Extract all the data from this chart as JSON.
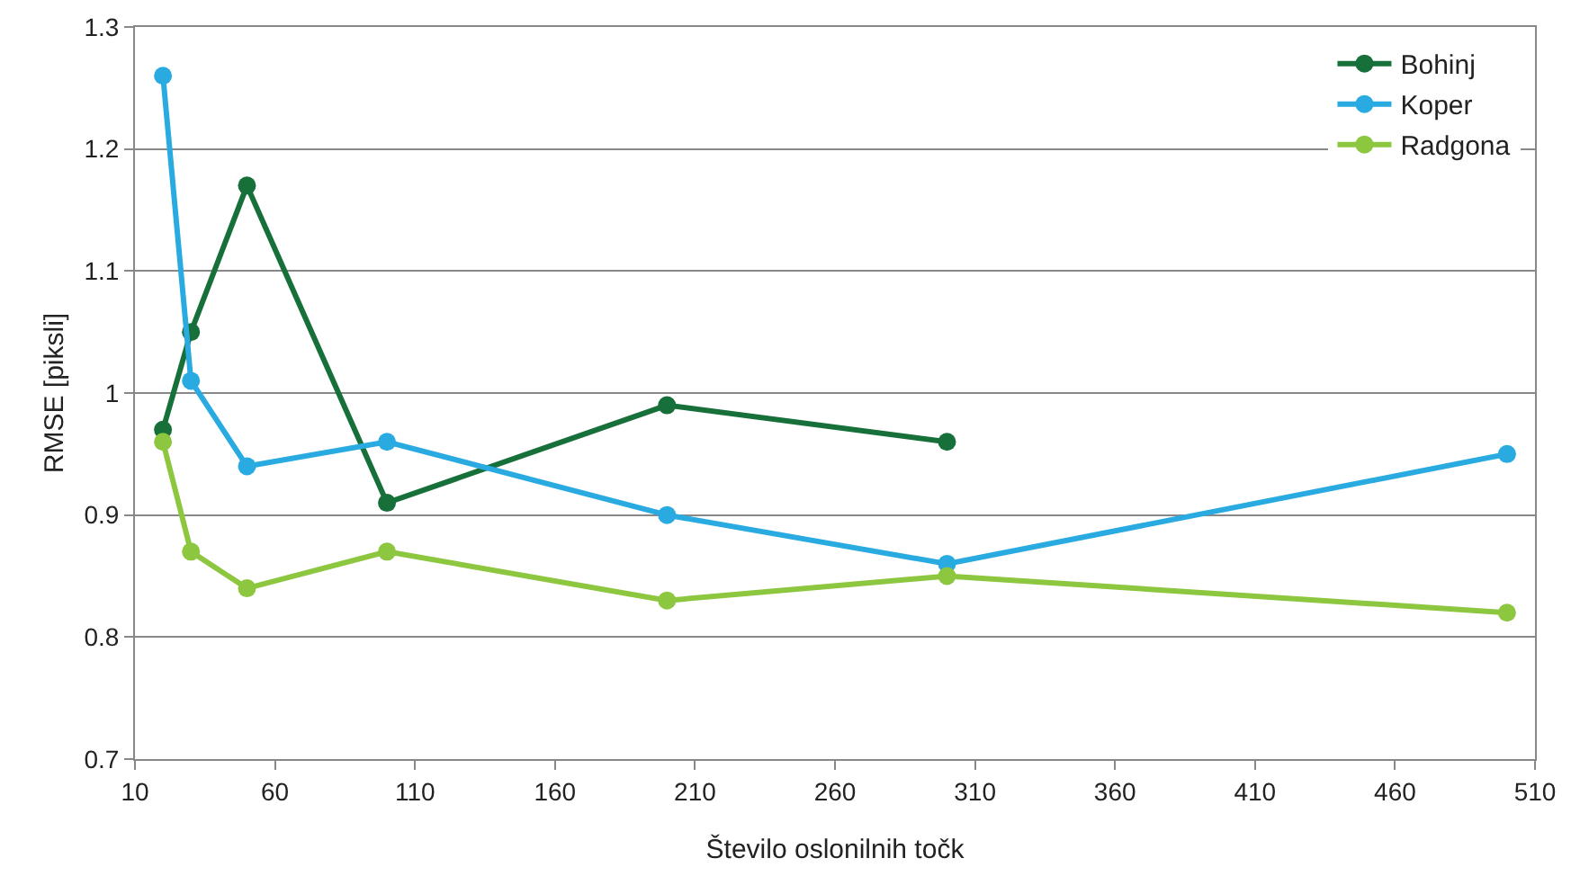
{
  "chart_data": {
    "type": "line",
    "xlabel": "Število oslonilnih točk",
    "ylabel": "RMSE [piksli]",
    "series": [
      {
        "name": "Bohinj",
        "color": "#17703a",
        "x": [
          20,
          30,
          50,
          100,
          200,
          300
        ],
        "values": [
          0.97,
          1.05,
          1.17,
          0.91,
          0.99,
          0.96
        ]
      },
      {
        "name": "Koper",
        "color": "#29abe2",
        "x": [
          20,
          30,
          50,
          100,
          200,
          300,
          500
        ],
        "values": [
          1.26,
          1.01,
          0.94,
          0.96,
          0.9,
          0.86,
          0.95
        ]
      },
      {
        "name": "Radgona",
        "color": "#8dc63f",
        "x": [
          20,
          30,
          50,
          100,
          200,
          300,
          500
        ],
        "values": [
          0.96,
          0.87,
          0.84,
          0.87,
          0.83,
          0.85,
          0.82
        ]
      }
    ],
    "xlim": [
      10,
      510
    ],
    "xticks": [
      10,
      60,
      110,
      160,
      210,
      260,
      310,
      360,
      410,
      460,
      510
    ],
    "ylim": [
      0.7,
      1.3
    ],
    "yticks": [
      0.7,
      0.8,
      0.9,
      1,
      1.1,
      1.2,
      1.3
    ],
    "grid": "y",
    "legend": "top right",
    "marker": "circle",
    "line_style": "solid"
  }
}
